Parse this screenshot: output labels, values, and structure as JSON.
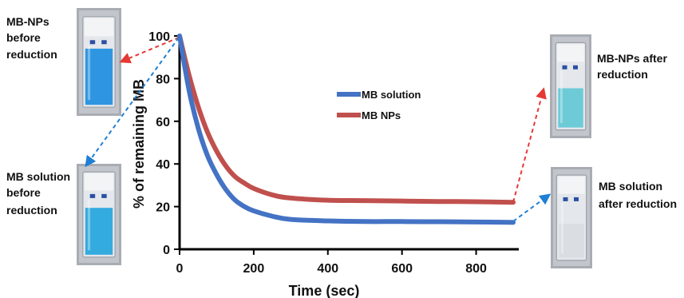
{
  "chart_data": {
    "type": "line",
    "title": "",
    "xlabel": "Time (sec)",
    "ylabel": "% of remaining MB",
    "xlim": [
      0,
      900
    ],
    "ylim": [
      0,
      100
    ],
    "xticks": [
      0,
      200,
      400,
      600,
      800
    ],
    "yticks": [
      0,
      20,
      40,
      60,
      80,
      100
    ],
    "grid": false,
    "legend_position": "center",
    "series": [
      {
        "name": "MB solution",
        "color": "#4472c4",
        "x": [
          0,
          25,
          50,
          75,
          100,
          125,
          150,
          175,
          200,
          250,
          300,
          400,
          500,
          600,
          700,
          800,
          900
        ],
        "y": [
          100,
          75,
          57,
          44,
          35,
          28,
          23,
          20,
          18,
          15.5,
          14,
          13.3,
          13,
          13,
          12.9,
          12.8,
          12.6
        ]
      },
      {
        "name": "MB NPs",
        "color": "#c0504d",
        "x": [
          0,
          25,
          50,
          75,
          100,
          125,
          150,
          175,
          200,
          250,
          300,
          400,
          500,
          600,
          700,
          800,
          900
        ],
        "y": [
          100,
          82,
          67,
          55,
          46,
          39,
          34,
          31,
          28.5,
          25.5,
          24,
          23,
          22.8,
          22.6,
          22.4,
          22.3,
          22
        ]
      }
    ]
  },
  "annotations": {
    "mbnp_before": [
      "MB-NPs",
      "before",
      "reduction"
    ],
    "mbsol_before": [
      "MB solution",
      "before",
      "reduction"
    ],
    "mbnp_after": [
      "MB-NPs after",
      "reduction"
    ],
    "mbsol_after": [
      "MB solution",
      "after reduction"
    ]
  },
  "cuvettes": {
    "mbnp_before": {
      "liquid": "#1e8fe0",
      "level": 0.62
    },
    "mbsol_before": {
      "liquid": "#25a6dd",
      "level": 0.55
    },
    "mbnp_after": {
      "liquid": "#63c9d6",
      "level": 0.45
    },
    "mbsol_after": {
      "liquid": "#d9dde2",
      "level": 0.4
    }
  },
  "arrow_colors": {
    "nps": "#e53935",
    "solution": "#1f7fd4"
  }
}
